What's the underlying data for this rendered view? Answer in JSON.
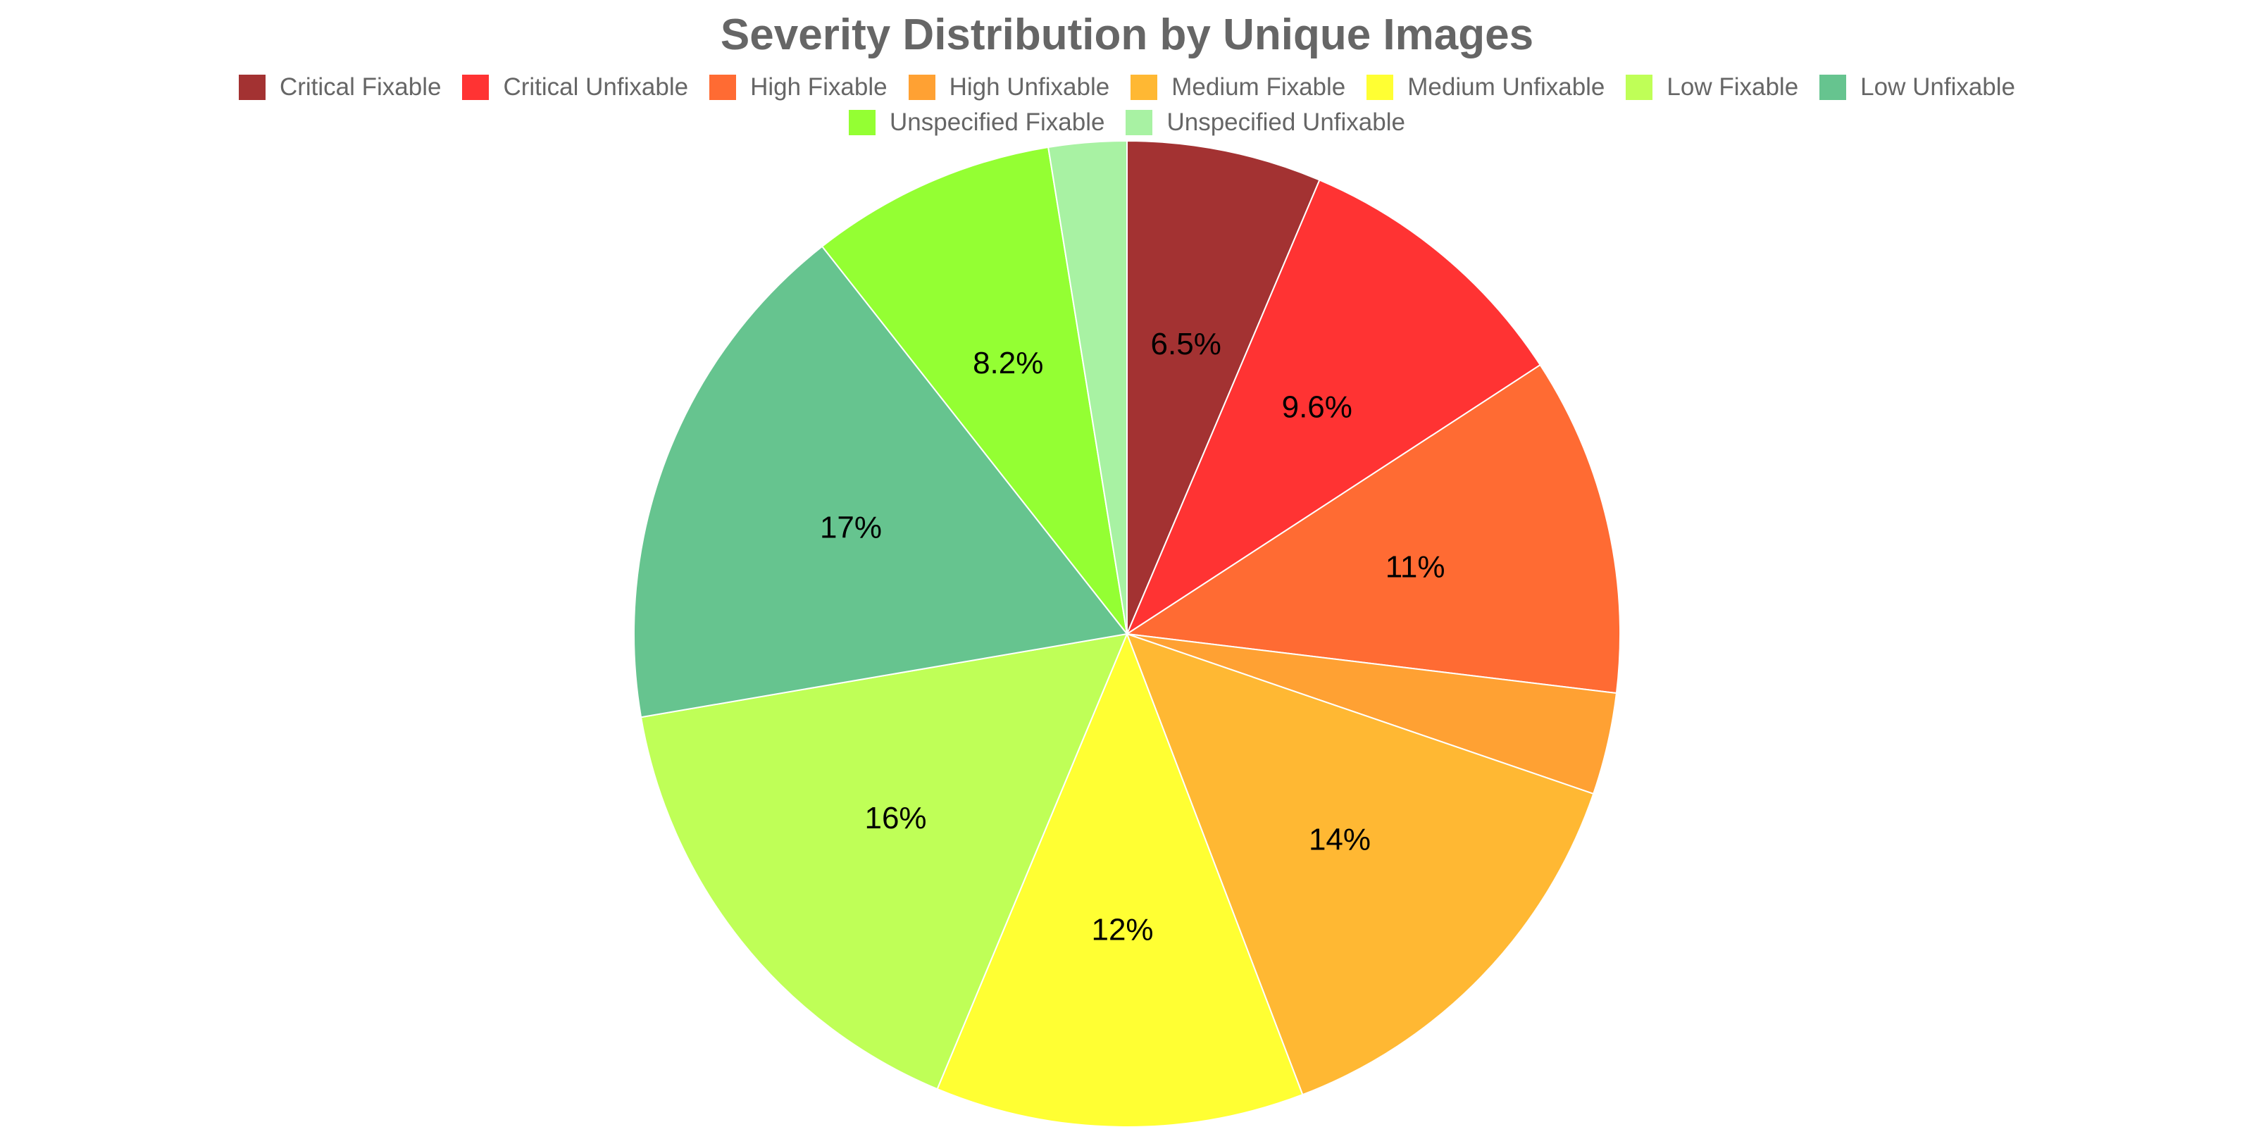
{
  "chart_data": {
    "type": "pie",
    "title": "Severity Distribution by Unique Images",
    "legend_position": "top",
    "slices": [
      {
        "name": "Critical Fixable",
        "value": 6.5,
        "label": "6.5%",
        "color": "#a33232"
      },
      {
        "name": "Critical Unfixable",
        "value": 9.6,
        "label": "9.6%",
        "color": "#ff3333"
      },
      {
        "name": "High Fixable",
        "value": 11.3,
        "label": "11%",
        "color": "#ff6b33"
      },
      {
        "name": "High Unfixable",
        "value": 3.4,
        "label": "",
        "color": "#ffa133"
      },
      {
        "name": "Medium Fixable",
        "value": 14.2,
        "label": "14%",
        "color": "#ffb833"
      },
      {
        "name": "Medium Unfixable",
        "value": 12.3,
        "label": "12%",
        "color": "#ffff33"
      },
      {
        "name": "Low Fixable",
        "value": 16.3,
        "label": "16%",
        "color": "#bfff57"
      },
      {
        "name": "Low Unfixable",
        "value": 17.4,
        "label": "17%",
        "color": "#66c48f"
      },
      {
        "name": "Unspecified Fixable",
        "value": 8.2,
        "label": "8.2%",
        "color": "#94ff33"
      },
      {
        "name": "Unspecified Unfixable",
        "value": 2.6,
        "label": "",
        "color": "#a8f2a3"
      }
    ]
  }
}
